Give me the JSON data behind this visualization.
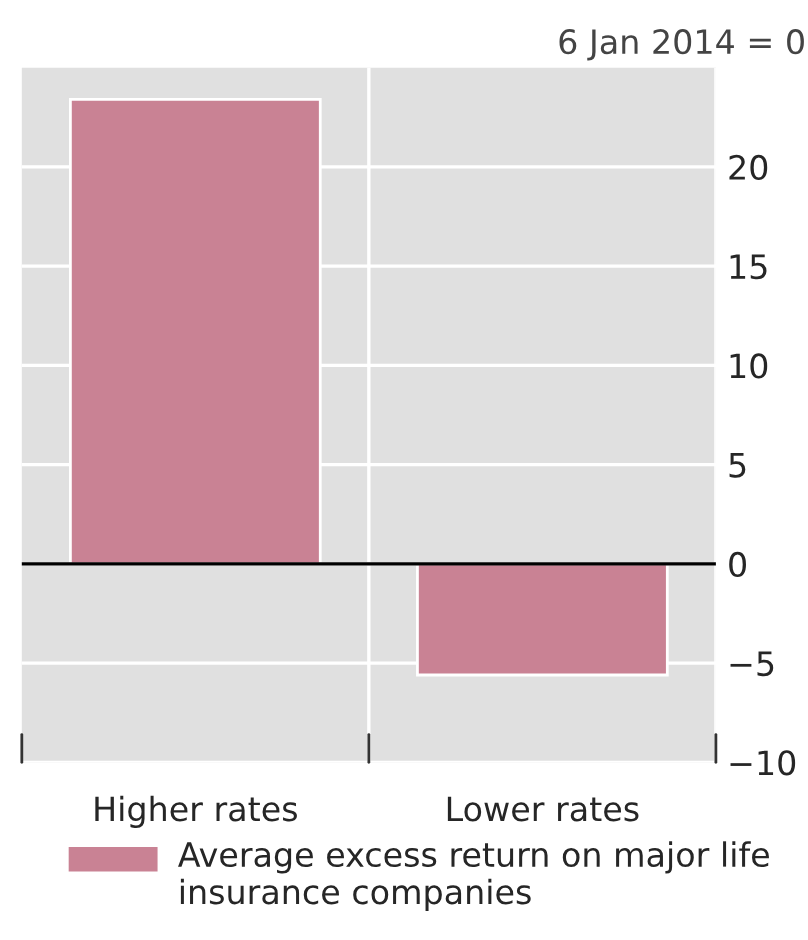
{
  "chart_data": {
    "type": "bar",
    "ylabel": "6 Jan 2014 = 0",
    "categories": [
      "Higher rates",
      "Lower rates"
    ],
    "series": [
      {
        "name": "Average excess return on major life insurance companies",
        "color": "#c98294",
        "values": [
          23.4,
          -5.6
        ]
      }
    ],
    "ylim": [
      -10,
      25
    ],
    "yticks": [
      -10,
      -5,
      0,
      5,
      10,
      15,
      20
    ],
    "grid": true,
    "legend": "bottom",
    "ref_lines": [
      {
        "axis": "y",
        "value": 0,
        "color": "#000000",
        "line_style": "solid"
      }
    ]
  }
}
